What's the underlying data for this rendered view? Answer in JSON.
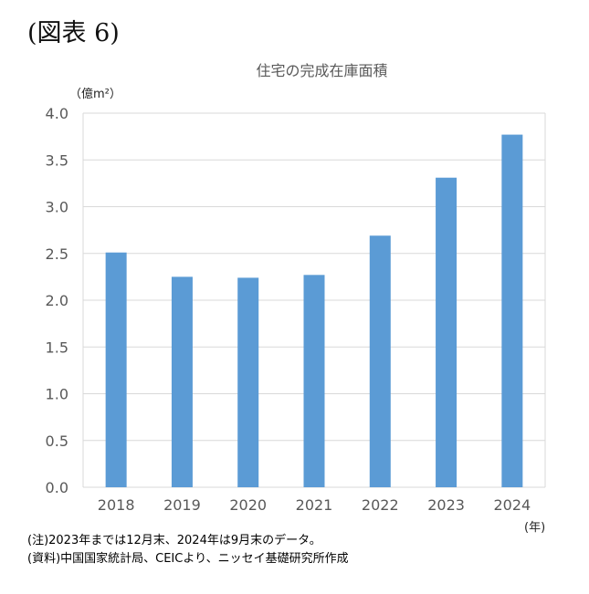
{
  "figure_label": "(図表 6)",
  "chart_data": {
    "type": "bar",
    "title": "住宅の完成在庫面積",
    "y_unit": "（億m²）",
    "x_unit": "(年)",
    "categories": [
      "2018",
      "2019",
      "2020",
      "2021",
      "2022",
      "2023",
      "2024"
    ],
    "values": [
      2.51,
      2.25,
      2.24,
      2.27,
      2.69,
      3.31,
      3.77
    ],
    "ylim": [
      0,
      4.0
    ],
    "yticks": [
      "0.0",
      "0.5",
      "1.0",
      "1.5",
      "2.0",
      "2.5",
      "3.0",
      "3.5",
      "4.0"
    ],
    "bar_color": "#5b9bd5",
    "grid": true,
    "legend": "none"
  },
  "notes": {
    "note1": "(注)2023年までは12月末、2024年は9月末のデータ。",
    "note2": "(資料)中国国家統計局、CEICより、ニッセイ基礎研究所作成"
  }
}
